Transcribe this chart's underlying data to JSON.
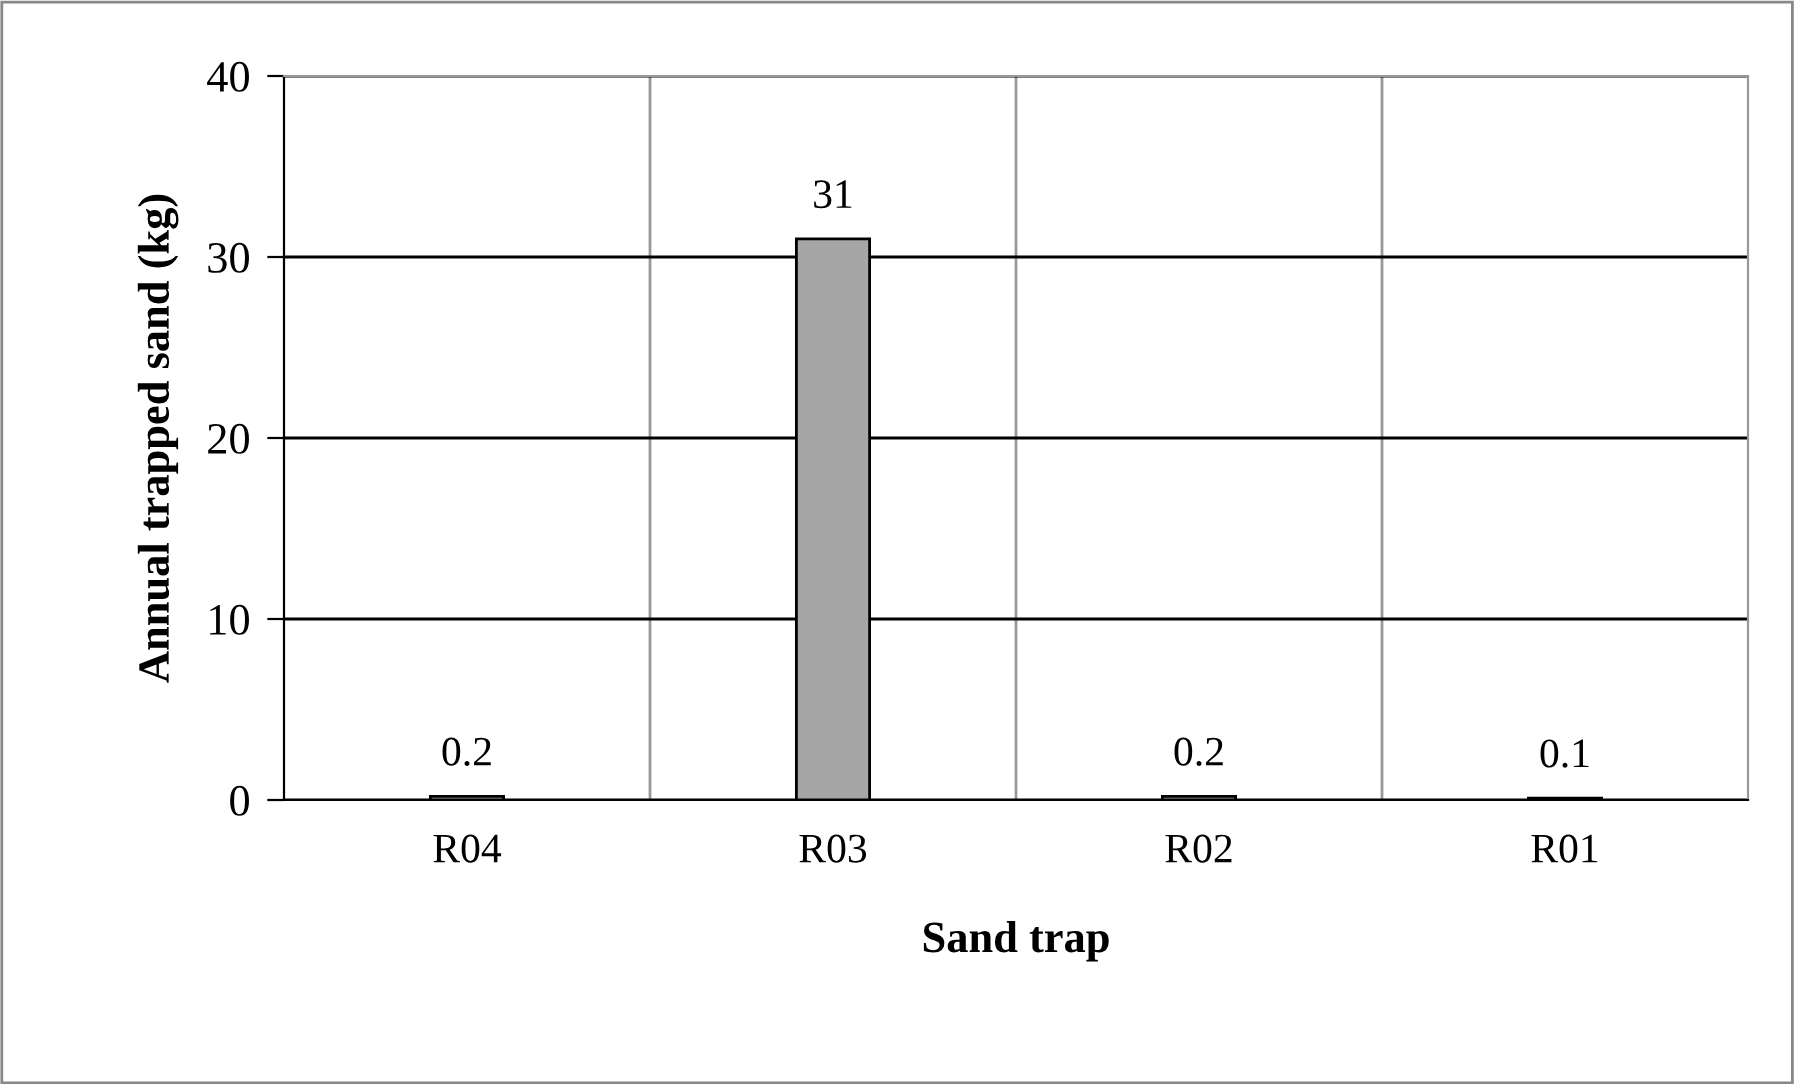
{
  "chart_data": {
    "type": "bar",
    "xlabel": "Sand trap",
    "ylabel": "Annual trapped sand (kg)",
    "categories": [
      "R04",
      "R03",
      "R02",
      "R01"
    ],
    "values": [
      0.2,
      31,
      0.2,
      0.1
    ],
    "color": "#a6a6a6",
    "ylim": [
      0,
      40
    ],
    "yticks": [
      0,
      10,
      20,
      30,
      40
    ],
    "grid": true,
    "data_labels": true,
    "legend": false
  }
}
